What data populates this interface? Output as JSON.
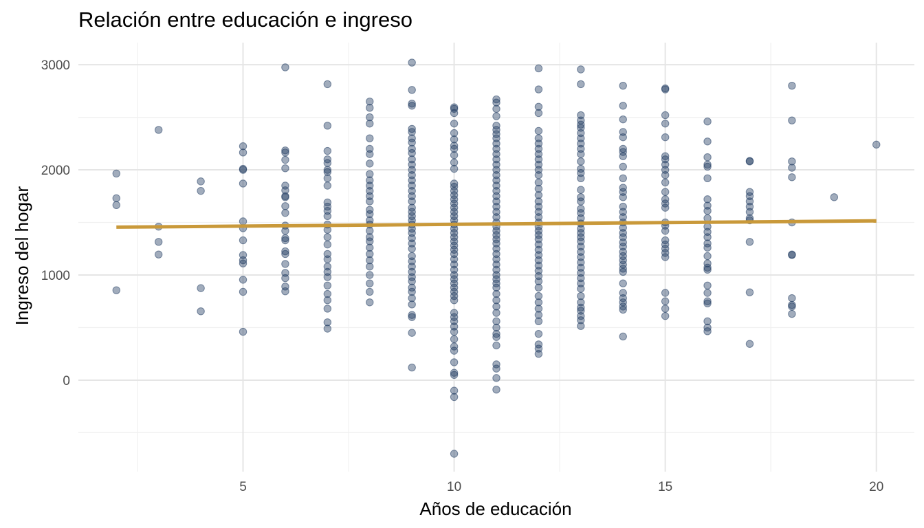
{
  "chart_data": {
    "type": "scatter",
    "title": "Relación entre educación e ingreso",
    "xlabel": "Años de educación",
    "ylabel": "Ingreso del hogar",
    "xlim": [
      1.1,
      20.9
    ],
    "ylim": [
      -870,
      3210
    ],
    "x_ticks": [
      5,
      10,
      15,
      20
    ],
    "y_ticks": [
      0,
      1000,
      2000,
      3000
    ],
    "x_tick_labels": [
      "5",
      "10",
      "15",
      "20"
    ],
    "y_tick_labels": [
      "0",
      "1000",
      "2000",
      "3000"
    ],
    "grid": true,
    "colors": {
      "points": "#1f3a60",
      "fit_line": "#c9993a"
    },
    "fit_line": {
      "x": [
        2,
        20
      ],
      "y": [
        1455,
        1515
      ]
    },
    "points": [
      [
        2,
        1965
      ],
      [
        2,
        1730
      ],
      [
        2,
        1665
      ],
      [
        2,
        855
      ],
      [
        3,
        2380
      ],
      [
        3,
        1460
      ],
      [
        3,
        1315
      ],
      [
        3,
        1195
      ],
      [
        4,
        1890
      ],
      [
        4,
        1800
      ],
      [
        4,
        875
      ],
      [
        4,
        655
      ],
      [
        5,
        2225
      ],
      [
        5,
        2165
      ],
      [
        5,
        2010
      ],
      [
        5,
        2000
      ],
      [
        5,
        1870
      ],
      [
        5,
        1510
      ],
      [
        5,
        1445
      ],
      [
        5,
        1330
      ],
      [
        5,
        1190
      ],
      [
        5,
        1140
      ],
      [
        5,
        1110
      ],
      [
        5,
        955
      ],
      [
        5,
        840
      ],
      [
        5,
        460
      ],
      [
        6,
        2975
      ],
      [
        6,
        2185
      ],
      [
        6,
        2165
      ],
      [
        6,
        2095
      ],
      [
        6,
        2015
      ],
      [
        6,
        1850
      ],
      [
        6,
        1805
      ],
      [
        6,
        1750
      ],
      [
        6,
        1740
      ],
      [
        6,
        1655
      ],
      [
        6,
        1590
      ],
      [
        6,
        1470
      ],
      [
        6,
        1420
      ],
      [
        6,
        1350
      ],
      [
        6,
        1330
      ],
      [
        6,
        1225
      ],
      [
        6,
        1200
      ],
      [
        6,
        1105
      ],
      [
        6,
        1020
      ],
      [
        6,
        970
      ],
      [
        6,
        890
      ],
      [
        6,
        845
      ],
      [
        7,
        2815
      ],
      [
        7,
        2420
      ],
      [
        7,
        2180
      ],
      [
        7,
        2100
      ],
      [
        7,
        2065
      ],
      [
        7,
        2000
      ],
      [
        7,
        1980
      ],
      [
        7,
        1920
      ],
      [
        7,
        1850
      ],
      [
        7,
        1690
      ],
      [
        7,
        1650
      ],
      [
        7,
        1610
      ],
      [
        7,
        1560
      ],
      [
        7,
        1480
      ],
      [
        7,
        1430
      ],
      [
        7,
        1360
      ],
      [
        7,
        1290
      ],
      [
        7,
        1200
      ],
      [
        7,
        1150
      ],
      [
        7,
        1080
      ],
      [
        7,
        1030
      ],
      [
        7,
        980
      ],
      [
        7,
        900
      ],
      [
        7,
        820
      ],
      [
        7,
        760
      ],
      [
        7,
        680
      ],
      [
        7,
        550
      ],
      [
        7,
        490
      ],
      [
        8,
        2650
      ],
      [
        8,
        2590
      ],
      [
        8,
        2500
      ],
      [
        8,
        2440
      ],
      [
        8,
        2300
      ],
      [
        8,
        2200
      ],
      [
        8,
        2150
      ],
      [
        8,
        2060
      ],
      [
        8,
        1960
      ],
      [
        8,
        1900
      ],
      [
        8,
        1850
      ],
      [
        8,
        1800
      ],
      [
        8,
        1750
      ],
      [
        8,
        1700
      ],
      [
        8,
        1620
      ],
      [
        8,
        1580
      ],
      [
        8,
        1520
      ],
      [
        8,
        1480
      ],
      [
        8,
        1420
      ],
      [
        8,
        1360
      ],
      [
        8,
        1320
      ],
      [
        8,
        1260
      ],
      [
        8,
        1200
      ],
      [
        8,
        1140
      ],
      [
        8,
        1080
      ],
      [
        8,
        1000
      ],
      [
        8,
        920
      ],
      [
        8,
        840
      ],
      [
        8,
        740
      ],
      [
        9,
        3020
      ],
      [
        9,
        2760
      ],
      [
        9,
        2630
      ],
      [
        9,
        2610
      ],
      [
        9,
        2390
      ],
      [
        9,
        2360
      ],
      [
        9,
        2300
      ],
      [
        9,
        2260
      ],
      [
        9,
        2200
      ],
      [
        9,
        2160
      ],
      [
        9,
        2100
      ],
      [
        9,
        2050
      ],
      [
        9,
        2000
      ],
      [
        9,
        1950
      ],
      [
        9,
        1900
      ],
      [
        9,
        1850
      ],
      [
        9,
        1800
      ],
      [
        9,
        1750
      ],
      [
        9,
        1700
      ],
      [
        9,
        1640
      ],
      [
        9,
        1600
      ],
      [
        9,
        1560
      ],
      [
        9,
        1520
      ],
      [
        9,
        1480
      ],
      [
        9,
        1440
      ],
      [
        9,
        1400
      ],
      [
        9,
        1350
      ],
      [
        9,
        1300
      ],
      [
        9,
        1250
      ],
      [
        9,
        1180
      ],
      [
        9,
        1130
      ],
      [
        9,
        1080
      ],
      [
        9,
        1030
      ],
      [
        9,
        980
      ],
      [
        9,
        940
      ],
      [
        9,
        880
      ],
      [
        9,
        840
      ],
      [
        9,
        780
      ],
      [
        9,
        720
      ],
      [
        9,
        620
      ],
      [
        9,
        600
      ],
      [
        9,
        450
      ],
      [
        9,
        120
      ],
      [
        10,
        2595
      ],
      [
        10,
        2580
      ],
      [
        10,
        2540
      ],
      [
        10,
        2440
      ],
      [
        10,
        2350
      ],
      [
        10,
        2290
      ],
      [
        10,
        2230
      ],
      [
        10,
        2200
      ],
      [
        10,
        2140
      ],
      [
        10,
        2070
      ],
      [
        10,
        2010
      ],
      [
        10,
        1870
      ],
      [
        10,
        1840
      ],
      [
        10,
        1800
      ],
      [
        10,
        1760
      ],
      [
        10,
        1720
      ],
      [
        10,
        1680
      ],
      [
        10,
        1640
      ],
      [
        10,
        1600
      ],
      [
        10,
        1560
      ],
      [
        10,
        1520
      ],
      [
        10,
        1480
      ],
      [
        10,
        1440
      ],
      [
        10,
        1400
      ],
      [
        10,
        1360
      ],
      [
        10,
        1320
      ],
      [
        10,
        1280
      ],
      [
        10,
        1240
      ],
      [
        10,
        1200
      ],
      [
        10,
        1150
      ],
      [
        10,
        1100
      ],
      [
        10,
        1050
      ],
      [
        10,
        1000
      ],
      [
        10,
        960
      ],
      [
        10,
        920
      ],
      [
        10,
        880
      ],
      [
        10,
        840
      ],
      [
        10,
        800
      ],
      [
        10,
        760
      ],
      [
        10,
        640
      ],
      [
        10,
        600
      ],
      [
        10,
        560
      ],
      [
        10,
        510
      ],
      [
        10,
        460
      ],
      [
        10,
        390
      ],
      [
        10,
        320
      ],
      [
        10,
        280
      ],
      [
        10,
        170
      ],
      [
        10,
        70
      ],
      [
        10,
        50
      ],
      [
        10,
        -100
      ],
      [
        10,
        -160
      ],
      [
        10,
        -700
      ],
      [
        11,
        2670
      ],
      [
        11,
        2640
      ],
      [
        11,
        2580
      ],
      [
        11,
        2510
      ],
      [
        11,
        2420
      ],
      [
        11,
        2380
      ],
      [
        11,
        2340
      ],
      [
        11,
        2300
      ],
      [
        11,
        2250
      ],
      [
        11,
        2200
      ],
      [
        11,
        2150
      ],
      [
        11,
        2100
      ],
      [
        11,
        2050
      ],
      [
        11,
        2000
      ],
      [
        11,
        1950
      ],
      [
        11,
        1900
      ],
      [
        11,
        1850
      ],
      [
        11,
        1800
      ],
      [
        11,
        1750
      ],
      [
        11,
        1700
      ],
      [
        11,
        1650
      ],
      [
        11,
        1600
      ],
      [
        11,
        1550
      ],
      [
        11,
        1500
      ],
      [
        11,
        1460
      ],
      [
        11,
        1420
      ],
      [
        11,
        1380
      ],
      [
        11,
        1340
      ],
      [
        11,
        1300
      ],
      [
        11,
        1250
      ],
      [
        11,
        1200
      ],
      [
        11,
        1150
      ],
      [
        11,
        1100
      ],
      [
        11,
        1050
      ],
      [
        11,
        1000
      ],
      [
        11,
        960
      ],
      [
        11,
        920
      ],
      [
        11,
        880
      ],
      [
        11,
        820
      ],
      [
        11,
        760
      ],
      [
        11,
        700
      ],
      [
        11,
        640
      ],
      [
        11,
        560
      ],
      [
        11,
        500
      ],
      [
        11,
        440
      ],
      [
        11,
        410
      ],
      [
        11,
        330
      ],
      [
        11,
        150
      ],
      [
        11,
        110
      ],
      [
        11,
        20
      ],
      [
        11,
        -90
      ],
      [
        12,
        2965
      ],
      [
        12,
        2765
      ],
      [
        12,
        2600
      ],
      [
        12,
        2540
      ],
      [
        12,
        2370
      ],
      [
        12,
        2300
      ],
      [
        12,
        2250
      ],
      [
        12,
        2200
      ],
      [
        12,
        2150
      ],
      [
        12,
        2100
      ],
      [
        12,
        2050
      ],
      [
        12,
        2000
      ],
      [
        12,
        1950
      ],
      [
        12,
        1880
      ],
      [
        12,
        1820
      ],
      [
        12,
        1760
      ],
      [
        12,
        1700
      ],
      [
        12,
        1650
      ],
      [
        12,
        1600
      ],
      [
        12,
        1550
      ],
      [
        12,
        1500
      ],
      [
        12,
        1460
      ],
      [
        12,
        1420
      ],
      [
        12,
        1380
      ],
      [
        12,
        1340
      ],
      [
        12,
        1290
      ],
      [
        12,
        1240
      ],
      [
        12,
        1190
      ],
      [
        12,
        1140
      ],
      [
        12,
        1090
      ],
      [
        12,
        1040
      ],
      [
        12,
        990
      ],
      [
        12,
        940
      ],
      [
        12,
        880
      ],
      [
        12,
        800
      ],
      [
        12,
        740
      ],
      [
        12,
        680
      ],
      [
        12,
        620
      ],
      [
        12,
        560
      ],
      [
        12,
        440
      ],
      [
        12,
        340
      ],
      [
        12,
        300
      ],
      [
        12,
        250
      ],
      [
        13,
        2955
      ],
      [
        13,
        2815
      ],
      [
        13,
        2520
      ],
      [
        13,
        2470
      ],
      [
        13,
        2430
      ],
      [
        13,
        2400
      ],
      [
        13,
        2350
      ],
      [
        13,
        2300
      ],
      [
        13,
        2250
      ],
      [
        13,
        2200
      ],
      [
        13,
        2150
      ],
      [
        13,
        2080
      ],
      [
        13,
        2010
      ],
      [
        13,
        1970
      ],
      [
        13,
        1920
      ],
      [
        13,
        1810
      ],
      [
        13,
        1740
      ],
      [
        13,
        1700
      ],
      [
        13,
        1630
      ],
      [
        13,
        1590
      ],
      [
        13,
        1540
      ],
      [
        13,
        1490
      ],
      [
        13,
        1440
      ],
      [
        13,
        1400
      ],
      [
        13,
        1360
      ],
      [
        13,
        1320
      ],
      [
        13,
        1270
      ],
      [
        13,
        1220
      ],
      [
        13,
        1170
      ],
      [
        13,
        1120
      ],
      [
        13,
        1070
      ],
      [
        13,
        1020
      ],
      [
        13,
        970
      ],
      [
        13,
        920
      ],
      [
        13,
        870
      ],
      [
        13,
        800
      ],
      [
        13,
        740
      ],
      [
        13,
        690
      ],
      [
        13,
        660
      ],
      [
        13,
        610
      ],
      [
        13,
        570
      ],
      [
        13,
        515
      ],
      [
        14,
        2800
      ],
      [
        14,
        2610
      ],
      [
        14,
        2480
      ],
      [
        14,
        2360
      ],
      [
        14,
        2310
      ],
      [
        14,
        2200
      ],
      [
        14,
        2170
      ],
      [
        14,
        2130
      ],
      [
        14,
        2030
      ],
      [
        14,
        1920
      ],
      [
        14,
        1830
      ],
      [
        14,
        1790
      ],
      [
        14,
        1740
      ],
      [
        14,
        1650
      ],
      [
        14,
        1600
      ],
      [
        14,
        1550
      ],
      [
        14,
        1500
      ],
      [
        14,
        1450
      ],
      [
        14,
        1400
      ],
      [
        14,
        1360
      ],
      [
        14,
        1310
      ],
      [
        14,
        1270
      ],
      [
        14,
        1220
      ],
      [
        14,
        1180
      ],
      [
        14,
        1140
      ],
      [
        14,
        1100
      ],
      [
        14,
        1060
      ],
      [
        14,
        1030
      ],
      [
        14,
        920
      ],
      [
        14,
        830
      ],
      [
        14,
        780
      ],
      [
        14,
        740
      ],
      [
        14,
        700
      ],
      [
        14,
        670
      ],
      [
        14,
        415
      ],
      [
        15,
        2775
      ],
      [
        15,
        2765
      ],
      [
        15,
        2520
      ],
      [
        15,
        2440
      ],
      [
        15,
        2310
      ],
      [
        15,
        2130
      ],
      [
        15,
        2100
      ],
      [
        15,
        2050
      ],
      [
        15,
        2000
      ],
      [
        15,
        1950
      ],
      [
        15,
        1880
      ],
      [
        15,
        1790
      ],
      [
        15,
        1720
      ],
      [
        15,
        1680
      ],
      [
        15,
        1640
      ],
      [
        15,
        1500
      ],
      [
        15,
        1470
      ],
      [
        15,
        1420
      ],
      [
        15,
        1330
      ],
      [
        15,
        1290
      ],
      [
        15,
        1250
      ],
      [
        15,
        1210
      ],
      [
        15,
        1170
      ],
      [
        15,
        830
      ],
      [
        15,
        750
      ],
      [
        15,
        680
      ],
      [
        15,
        610
      ],
      [
        16,
        2460
      ],
      [
        16,
        2270
      ],
      [
        16,
        2120
      ],
      [
        16,
        2050
      ],
      [
        16,
        2030
      ],
      [
        16,
        1920
      ],
      [
        16,
        1720
      ],
      [
        16,
        1660
      ],
      [
        16,
        1610
      ],
      [
        16,
        1540
      ],
      [
        16,
        1460
      ],
      [
        16,
        1410
      ],
      [
        16,
        1360
      ],
      [
        16,
        1300
      ],
      [
        16,
        1260
      ],
      [
        16,
        1180
      ],
      [
        16,
        1110
      ],
      [
        16,
        1070
      ],
      [
        16,
        1050
      ],
      [
        16,
        900
      ],
      [
        16,
        830
      ],
      [
        16,
        750
      ],
      [
        16,
        730
      ],
      [
        16,
        560
      ],
      [
        16,
        500
      ],
      [
        16,
        465
      ],
      [
        17,
        2085
      ],
      [
        17,
        2080
      ],
      [
        17,
        1790
      ],
      [
        17,
        1750
      ],
      [
        17,
        1700
      ],
      [
        17,
        1650
      ],
      [
        17,
        1600
      ],
      [
        17,
        1540
      ],
      [
        17,
        1520
      ],
      [
        17,
        1315
      ],
      [
        17,
        835
      ],
      [
        17,
        345
      ],
      [
        18,
        2800
      ],
      [
        18,
        2470
      ],
      [
        18,
        2080
      ],
      [
        18,
        2020
      ],
      [
        18,
        1930
      ],
      [
        18,
        1500
      ],
      [
        18,
        1195
      ],
      [
        18,
        1190
      ],
      [
        18,
        780
      ],
      [
        18,
        715
      ],
      [
        18,
        700
      ],
      [
        18,
        630
      ],
      [
        19,
        1740
      ],
      [
        20,
        2240
      ]
    ]
  }
}
